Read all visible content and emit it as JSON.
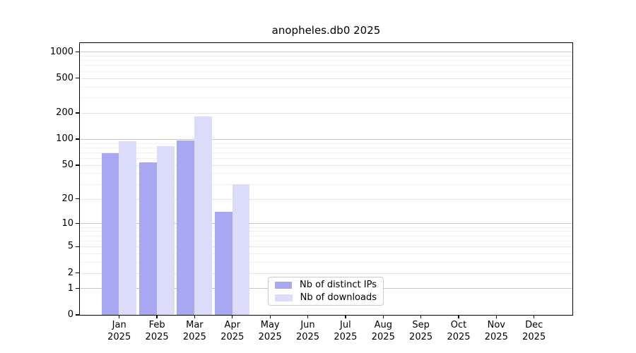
{
  "figure": {
    "title": "anopheles.db0 2025"
  },
  "chart_data": {
    "type": "bar",
    "title": "anopheles.db0 2025",
    "categories": [
      "Jan",
      "Feb",
      "Mar",
      "Apr",
      "May",
      "Jun",
      "Jul",
      "Aug",
      "Sep",
      "Oct",
      "Nov",
      "Dec"
    ],
    "x_tick_year": "2025",
    "series": [
      {
        "name": "Nb of distinct IPs",
        "color": "#a8a8f2",
        "values": [
          68,
          54,
          97,
          14,
          0,
          0,
          0,
          0,
          0,
          0,
          0,
          0
        ]
      },
      {
        "name": "Nb of downloads",
        "color": "#dbdbfa",
        "values": [
          95,
          82,
          180,
          30,
          0,
          0,
          0,
          0,
          0,
          0,
          0,
          0
        ]
      }
    ],
    "xlabel": "",
    "ylabel": "",
    "y_scale": "log10(1+y)",
    "y_ticks": [
      0,
      1,
      2,
      5,
      10,
      20,
      50,
      100,
      200,
      500,
      1000
    ],
    "ylim": [
      0,
      1260
    ],
    "grid": true,
    "legend": {
      "position": "lower-center",
      "items": [
        "Nb of distinct IPs",
        "Nb of downloads"
      ]
    }
  }
}
